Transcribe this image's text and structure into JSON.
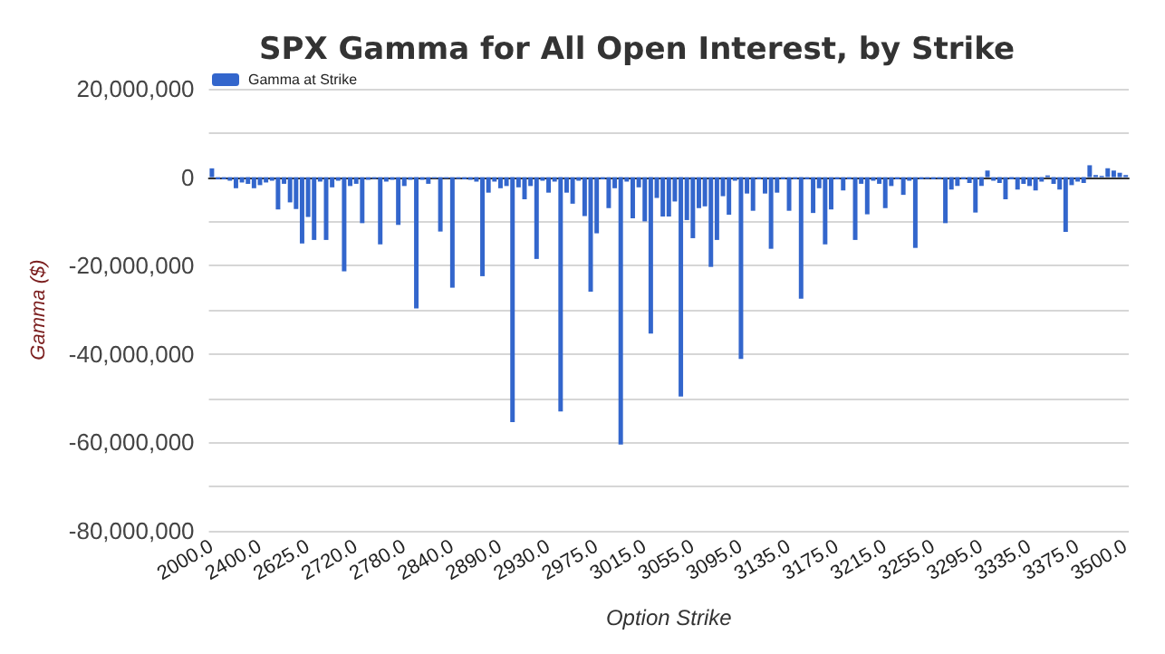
{
  "chart_data": {
    "type": "bar",
    "title": "SPX Gamma for All Open Interest, by Strike",
    "xlabel": "Option Strike",
    "ylabel": "Gamma ($)",
    "legend": "top left",
    "grid": "y",
    "categories": [
      "2000.0",
      null,
      null,
      null,
      null,
      null,
      null,
      null,
      "2400.0",
      null,
      null,
      null,
      null,
      null,
      null,
      null,
      "2625.0",
      null,
      null,
      null,
      null,
      null,
      null,
      null,
      "2720.0",
      null,
      null,
      null,
      null,
      null,
      null,
      null,
      "2780.0",
      null,
      null,
      null,
      null,
      null,
      null,
      null,
      "2840.0",
      null,
      null,
      null,
      null,
      null,
      null,
      null,
      "2890.0",
      null,
      null,
      null,
      null,
      null,
      null,
      null,
      "2930.0",
      null,
      null,
      null,
      null,
      null,
      null,
      null,
      "2975.0",
      null,
      null,
      null,
      null,
      null,
      null,
      null,
      "3015.0",
      null,
      null,
      null,
      null,
      null,
      null,
      null,
      "3055.0",
      null,
      null,
      null,
      null,
      null,
      null,
      null,
      "3095.0",
      null,
      null,
      null,
      null,
      null,
      null,
      null,
      "3135.0",
      null,
      null,
      null,
      null,
      null,
      null,
      null,
      "3175.0",
      null,
      null,
      null,
      null,
      null,
      null,
      null,
      "3215.0",
      null,
      null,
      null,
      null,
      null,
      null,
      null,
      "3255.0",
      null,
      null,
      null,
      null,
      null,
      null,
      null,
      "3295.0",
      null,
      null,
      null,
      null,
      null,
      null,
      null,
      "3335.0",
      null,
      null,
      null,
      null,
      null,
      null,
      null,
      "3375.0",
      null,
      null,
      null,
      null,
      null,
      null,
      null,
      "3500.0"
    ],
    "series": [
      {
        "name": "Gamma at Strike",
        "color": "#3366cc",
        "values": [
          2000000,
          -500000,
          -500000,
          -800000,
          -2500000,
          -1200000,
          -1500000,
          -2500000,
          -1800000,
          -1200000,
          -800000,
          -7300000,
          -1500000,
          -5700000,
          -7200000,
          -15000000,
          -9000000,
          -14200000,
          -1000000,
          -14200000,
          -2300000,
          -800000,
          -21300000,
          -2000000,
          -1500000,
          -10400000,
          -600000,
          -400000,
          -15200000,
          -1000000,
          -600000,
          -10800000,
          -2000000,
          -600000,
          -29700000,
          -600000,
          -1500000,
          -300000,
          -12300000,
          -300000,
          -25000000,
          -400000,
          -500000,
          -600000,
          -1000000,
          -22400000,
          -3500000,
          -1000000,
          -2500000,
          -2000000,
          -55400000,
          -2300000,
          -5000000,
          -2000000,
          -18500000,
          -800000,
          -3500000,
          -1000000,
          -53000000,
          -3500000,
          -6000000,
          -800000,
          -8800000,
          -25900000,
          -12700000,
          -500000,
          -7000000,
          -2500000,
          -60500000,
          -1000000,
          -9300000,
          -2300000,
          -10000000,
          -35400000,
          -4700000,
          -8900000,
          -8900000,
          -5500000,
          -49600000,
          -9700000,
          -13800000,
          -7000000,
          -6600000,
          -20300000,
          -14200000,
          -4300000,
          -8500000,
          -800000,
          -41100000,
          -3700000,
          -7600000,
          -500000,
          -3700000,
          -16200000,
          -3500000,
          -500000,
          -7600000,
          -500000,
          -27500000,
          -500000,
          -8100000,
          -2500000,
          -15200000,
          -7300000,
          -500000,
          -3000000,
          -500000,
          -14200000,
          -1500000,
          -8400000,
          -800000,
          -1500000,
          -7000000,
          -2000000,
          -500000,
          -4000000,
          -800000,
          -16000000,
          -500000,
          -400000,
          -500000,
          -400000,
          -10400000,
          -2800000,
          -2000000,
          -500000,
          -1300000,
          -8000000,
          -2000000,
          1500000,
          -800000,
          -1300000,
          -5000000,
          -500000,
          -2800000,
          -1500000,
          -2000000,
          -3000000,
          -1000000,
          400000,
          -1500000,
          -2800000,
          -12400000,
          -1800000,
          -1000000,
          -1300000,
          2700000,
          500000,
          300000,
          2000000,
          1500000,
          1000000,
          500000
        ]
      }
    ],
    "ylim": [
      -80000000,
      20000000
    ],
    "yticks": [
      {
        "value": -80000000,
        "label": "-80,000,000"
      },
      {
        "value": -70000000,
        "label": null
      },
      {
        "value": -60000000,
        "label": "-60,000,000"
      },
      {
        "value": -50000000,
        "label": null
      },
      {
        "value": -40000000,
        "label": "-40,000,000"
      },
      {
        "value": -30000000,
        "label": null
      },
      {
        "value": -20000000,
        "label": "-20,000,000"
      },
      {
        "value": -10000000,
        "label": null
      },
      {
        "value": 0,
        "label": "0"
      },
      {
        "value": 10000000,
        "label": null
      },
      {
        "value": 20000000,
        "label": "20,000,000"
      }
    ]
  }
}
